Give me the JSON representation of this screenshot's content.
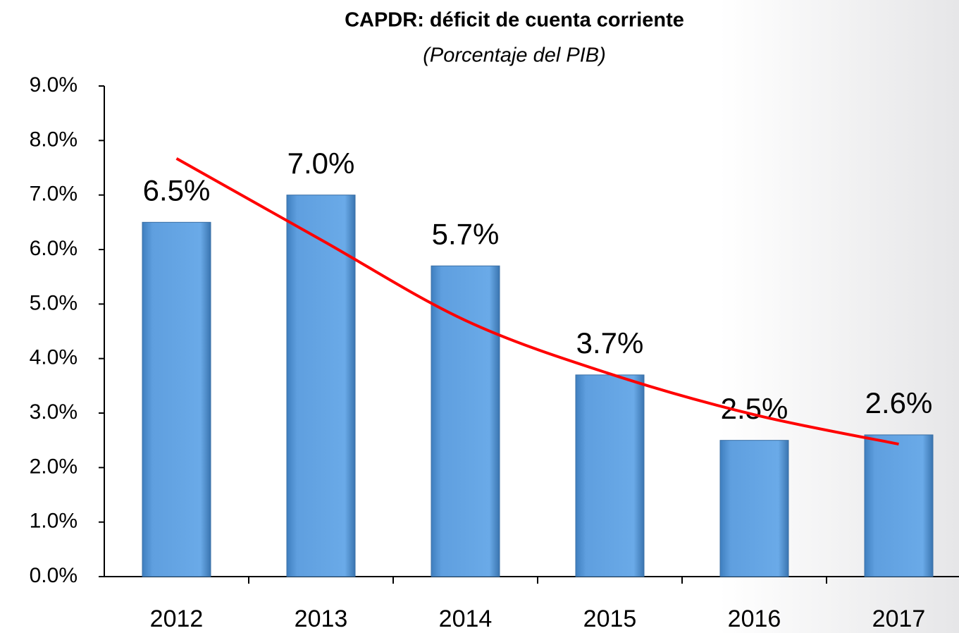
{
  "chart_data": {
    "type": "bar",
    "title": "CAPDR: déficit de cuenta corriente",
    "subtitle": "(Porcentaje del PIB)",
    "categories": [
      "2012",
      "2013",
      "2014",
      "2015",
      "2016",
      "2017"
    ],
    "values": [
      6.5,
      7.0,
      5.7,
      3.7,
      2.5,
      2.6
    ],
    "value_labels": [
      "6.5%",
      "7.0%",
      "5.7%",
      "3.7%",
      "2.5%",
      "2.6%"
    ],
    "color": "#5b9bd5",
    "trendline": {
      "color": "#ff0000",
      "values": [
        7.67,
        6.18,
        4.7,
        3.72,
        2.97,
        2.43
      ]
    },
    "ylim": [
      0,
      9
    ],
    "yticks": [
      {
        "value": 0,
        "label": "0.0%"
      },
      {
        "value": 1,
        "label": "1.0%"
      },
      {
        "value": 2,
        "label": "2.0%"
      },
      {
        "value": 3,
        "label": "3.0%"
      },
      {
        "value": 4,
        "label": "4.0%"
      },
      {
        "value": 5,
        "label": "5.0%"
      },
      {
        "value": 6,
        "label": "6.0%"
      },
      {
        "value": 7,
        "label": "7.0%"
      },
      {
        "value": 8,
        "label": "8.0%"
      },
      {
        "value": 9,
        "label": "9.0%"
      }
    ],
    "grid": false
  }
}
